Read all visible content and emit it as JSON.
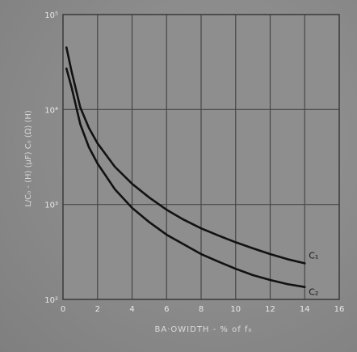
{
  "chart_data": {
    "type": "line",
    "xlabel": "BA·OWIDTH - % of f₀",
    "ylabel": "L/C₀ - (H) (μF) C₀ (Ω) (H)",
    "x_ticks": [
      "0",
      "2",
      "4",
      "6",
      "8",
      "10",
      "12",
      "14",
      "16"
    ],
    "y_ticks": [
      "10²",
      "10³",
      "10⁴",
      "10⁵"
    ],
    "xlim": [
      0,
      16
    ],
    "ylim": [
      100,
      100000
    ],
    "yscale": "log",
    "grid": true,
    "series": [
      {
        "name": "C₁",
        "x": [
          0.2,
          0.5,
          1,
          1.5,
          2,
          3,
          4,
          5,
          6,
          7,
          8,
          9,
          10,
          11,
          12,
          13,
          14
        ],
        "y": [
          45000,
          25000,
          10500,
          6400,
          4400,
          2500,
          1650,
          1180,
          880,
          690,
          560,
          470,
          400,
          345,
          300,
          265,
          240
        ]
      },
      {
        "name": "C₂",
        "x": [
          0.2,
          0.5,
          1,
          1.5,
          2,
          3,
          4,
          5,
          6,
          7,
          8,
          9,
          10,
          11,
          12,
          13,
          14
        ],
        "y": [
          27000,
          17000,
          7000,
          4000,
          2700,
          1450,
          920,
          650,
          480,
          380,
          300,
          250,
          210,
          180,
          160,
          145,
          135
        ]
      }
    ]
  }
}
